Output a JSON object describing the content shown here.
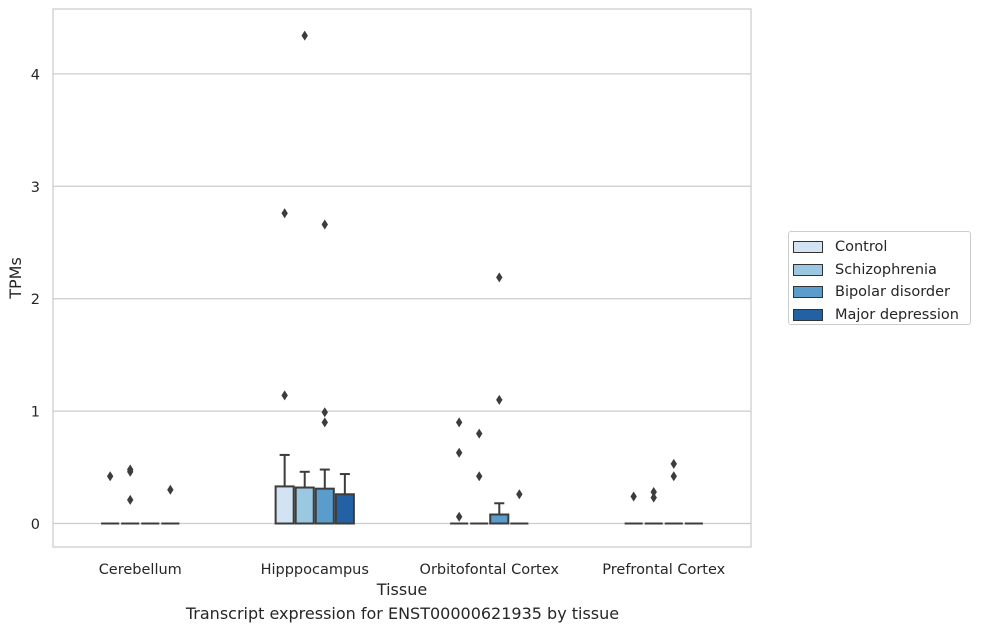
{
  "caption": "Transcript expression for ENST00000621935 by tissue",
  "chart_data": {
    "type": "box",
    "title": "",
    "xlabel": "Tissue",
    "ylabel": "TPMs",
    "ylim": [
      -0.2,
      4.57
    ],
    "yticks": [
      0,
      1,
      2,
      3,
      4
    ],
    "categories": [
      "Cerebellum",
      "Hipppocampus",
      "Orbitofontal Cortex",
      "Prefrontal Cortex"
    ],
    "grid": "horizontal",
    "legend_position": "right",
    "series": [
      {
        "name": "Control",
        "color": "#d2e3f3",
        "boxes": [
          {
            "q1": 0,
            "median": 0,
            "q3": 0,
            "whisker_low": 0,
            "whisker_high": 0,
            "outliers": [
              0.42
            ]
          },
          {
            "q1": 0,
            "median": 0,
            "q3": 0.33,
            "whisker_low": 0,
            "whisker_high": 0.61,
            "outliers": [
              2.76,
              1.14
            ]
          },
          {
            "q1": 0,
            "median": 0,
            "q3": 0,
            "whisker_low": 0,
            "whisker_high": 0,
            "outliers": [
              0.9,
              0.63,
              0.06
            ]
          },
          {
            "q1": 0,
            "median": 0,
            "q3": 0,
            "whisker_low": 0,
            "whisker_high": 0,
            "outliers": [
              0.24
            ]
          }
        ]
      },
      {
        "name": "Schizophrenia",
        "color": "#9ac8e0",
        "boxes": [
          {
            "q1": 0,
            "median": 0,
            "q3": 0,
            "whisker_low": 0,
            "whisker_high": 0,
            "outliers": [
              0.48,
              0.46,
              0.21
            ]
          },
          {
            "q1": 0,
            "median": 0,
            "q3": 0.32,
            "whisker_low": 0,
            "whisker_high": 0.46,
            "outliers": [
              4.34
            ]
          },
          {
            "q1": 0,
            "median": 0,
            "q3": 0,
            "whisker_low": 0,
            "whisker_high": 0,
            "outliers": [
              0.8,
              0.42
            ]
          },
          {
            "q1": 0,
            "median": 0,
            "q3": 0,
            "whisker_low": 0,
            "whisker_high": 0,
            "outliers": [
              0.28,
              0.23
            ]
          }
        ]
      },
      {
        "name": "Bipolar disorder",
        "color": "#5a9ccb",
        "boxes": [
          {
            "q1": 0,
            "median": 0,
            "q3": 0,
            "whisker_low": 0,
            "whisker_high": 0,
            "outliers": []
          },
          {
            "q1": 0,
            "median": 0,
            "q3": 0.31,
            "whisker_low": 0,
            "whisker_high": 0.48,
            "outliers": [
              2.66,
              0.99,
              0.9
            ]
          },
          {
            "q1": 0,
            "median": 0,
            "q3": 0.08,
            "whisker_low": 0,
            "whisker_high": 0.18,
            "outliers": [
              2.19,
              1.1
            ]
          },
          {
            "q1": 0,
            "median": 0,
            "q3": 0,
            "whisker_low": 0,
            "whisker_high": 0,
            "outliers": [
              0.53,
              0.42
            ]
          }
        ]
      },
      {
        "name": "Major depression",
        "color": "#2361a5",
        "boxes": [
          {
            "q1": 0,
            "median": 0,
            "q3": 0,
            "whisker_low": 0,
            "whisker_high": 0,
            "outliers": [
              0.3
            ]
          },
          {
            "q1": 0,
            "median": 0,
            "q3": 0.26,
            "whisker_low": 0,
            "whisker_high": 0.44,
            "outliers": []
          },
          {
            "q1": 0,
            "median": 0,
            "q3": 0,
            "whisker_low": 0,
            "whisker_high": 0,
            "outliers": [
              0.26
            ]
          },
          {
            "q1": 0,
            "median": 0,
            "q3": 0,
            "whisker_low": 0,
            "whisker_high": 0,
            "outliers": []
          }
        ]
      }
    ]
  }
}
